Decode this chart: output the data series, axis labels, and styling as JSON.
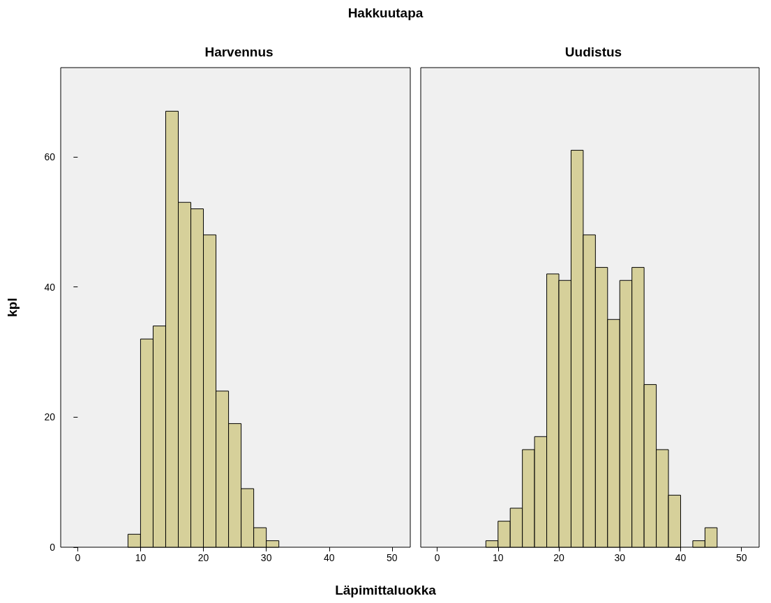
{
  "chart_data": [
    {
      "type": "histogram",
      "title": "Harvennus",
      "ylabel": "kpl",
      "xlabel": "Läpimittaluokka",
      "annotations": [
        "Hakkuutapa"
      ],
      "color": "#d6d09a",
      "bins": [
        8,
        10,
        12,
        14,
        16,
        18,
        20,
        22,
        24,
        26,
        28,
        30,
        32
      ],
      "values": [
        2,
        32,
        34,
        67,
        53,
        52,
        48,
        24,
        19,
        9,
        3,
        1
      ],
      "xlim": [
        -2.7,
        52.9
      ],
      "xticks": [
        0,
        10,
        20,
        30,
        40,
        50
      ],
      "ylim": [
        0,
        73.7
      ],
      "yticks": [
        0,
        20,
        40,
        60
      ],
      "grid": false
    },
    {
      "type": "histogram",
      "title": "Uudistus",
      "color": "#d6d09a",
      "tick_labels": "x",
      "bins": [
        8,
        10,
        12,
        14,
        16,
        18,
        20,
        22,
        24,
        26,
        28,
        30,
        32,
        34,
        36,
        38,
        40,
        42,
        44,
        46
      ],
      "values": [
        1,
        4,
        6,
        15,
        17,
        42,
        41,
        61,
        48,
        43,
        35,
        41,
        43,
        25,
        15,
        8,
        0,
        1,
        3
      ],
      "xlim": [
        -2.7,
        52.9
      ],
      "xticks": [
        0,
        10,
        20,
        30,
        40,
        50
      ],
      "ylim": [
        0,
        73.7
      ],
      "yticks": [
        0,
        20,
        40,
        60
      ],
      "grid": false
    }
  ]
}
